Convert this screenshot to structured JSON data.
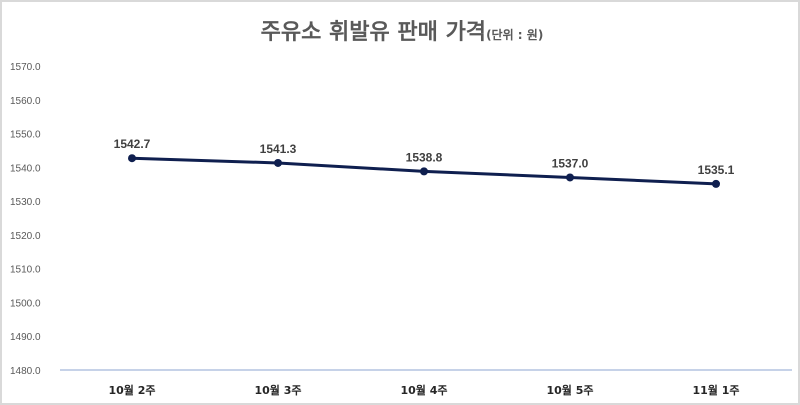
{
  "chart_data": {
    "type": "line",
    "title": "주유소 휘발유 판매 가격",
    "unit_note": "(단위 : 원)",
    "categories": [
      "10월 2주",
      "10월 3주",
      "10월 4주",
      "10월 5주",
      "11월 1주"
    ],
    "series": [
      {
        "values": [
          1542.7,
          1541.3,
          1538.8,
          1537.0,
          1535.1
        ],
        "labels": [
          "1542.7",
          "1541.3",
          "1538.8",
          "1537.0",
          "1535.1"
        ],
        "color": "#0f1f4f"
      }
    ],
    "ylim": [
      1480,
      1570
    ],
    "yticks": [
      "1480.0",
      "1490.0",
      "1500.0",
      "1510.0",
      "1520.0",
      "1530.0",
      "1540.0",
      "1550.0",
      "1560.0",
      "1570.0"
    ],
    "grid": false,
    "axis_color": "#b4c4e0"
  }
}
